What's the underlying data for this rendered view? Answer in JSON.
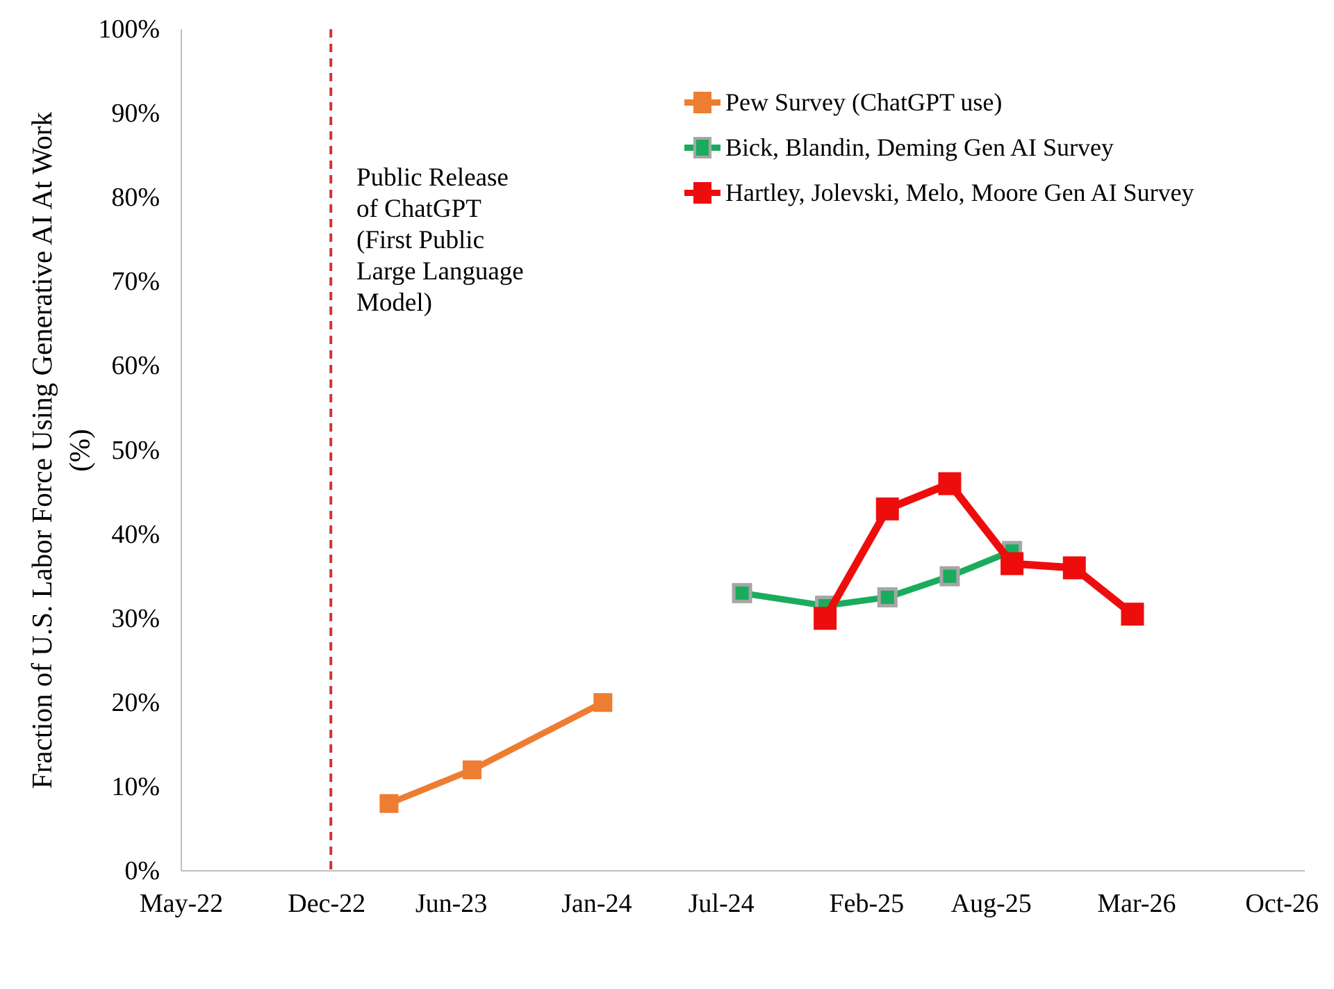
{
  "chart_data": {
    "type": "line",
    "grid": false,
    "legend_position": "top-right",
    "y_axis": {
      "title_line1": "Fraction of U.S. Labor Force Using Generative AI At Work",
      "title_line2": "(%)",
      "min": 0,
      "max": 100,
      "tick_step": 10,
      "tick_labels": [
        "0%",
        "10%",
        "20%",
        "30%",
        "40%",
        "50%",
        "60%",
        "70%",
        "80%",
        "90%",
        "100%"
      ],
      "tick_values": [
        0,
        10,
        20,
        30,
        40,
        50,
        60,
        70,
        80,
        90,
        100
      ]
    },
    "x_axis": {
      "tick_labels": [
        "May-22",
        "Dec-22",
        "Jun-23",
        "Jan-24",
        "Jul-24",
        "Feb-25",
        "Aug-25",
        "Mar-26",
        "Oct-26"
      ],
      "tick_months_since_may_2022": [
        0,
        7,
        13,
        20,
        26,
        33,
        39,
        46,
        53
      ]
    },
    "series": [
      {
        "name": "Pew Survey (ChatGPT use)",
        "color": "#ED7D31",
        "marker": "square",
        "marker_size": 27,
        "marker_border_color": null,
        "line_width": 9,
        "dates": [
          "Mar-23",
          "Jul-23",
          "Jan-24"
        ],
        "months_since_may_2022": [
          10,
          14,
          20.3
        ],
        "values_pct": [
          8,
          12,
          20
        ]
      },
      {
        "name": "Bick, Blandin, Deming Gen AI Survey",
        "color": "#1AAC5C",
        "marker": "square",
        "marker_size": 24,
        "marker_border_color": "#A6A6A6",
        "line_width": 9,
        "dates": [
          "Aug-24",
          "Dec-24",
          "Mar-25",
          "Jun-25",
          "Sep-25"
        ],
        "months_since_may_2022": [
          27,
          31,
          34,
          37,
          40
        ],
        "values_pct": [
          33,
          31.5,
          32.5,
          35,
          38
        ]
      },
      {
        "name": "Hartley, Jolevski, Melo, Moore Gen AI Survey",
        "color": "#EE0D0D",
        "marker": "square",
        "marker_size": 33,
        "marker_border_color": null,
        "line_width": 11,
        "dates": [
          "Dec-24",
          "Mar-25",
          "Jun-25",
          "Sep-25",
          "Dec-25",
          "Feb-26"
        ],
        "months_since_may_2022": [
          31,
          34,
          37,
          40,
          43,
          45.8
        ],
        "values_pct": [
          30,
          43,
          46,
          36.5,
          36,
          30.5
        ]
      }
    ],
    "annotation": {
      "text": "Public Release\nof ChatGPT\n(First Public\nLarge Language\nModel)",
      "line_month_since_may_2022": 7.2,
      "line_color": "#D03434",
      "line_style": "dashed"
    },
    "axis_line_color": "#BFBFBF"
  }
}
